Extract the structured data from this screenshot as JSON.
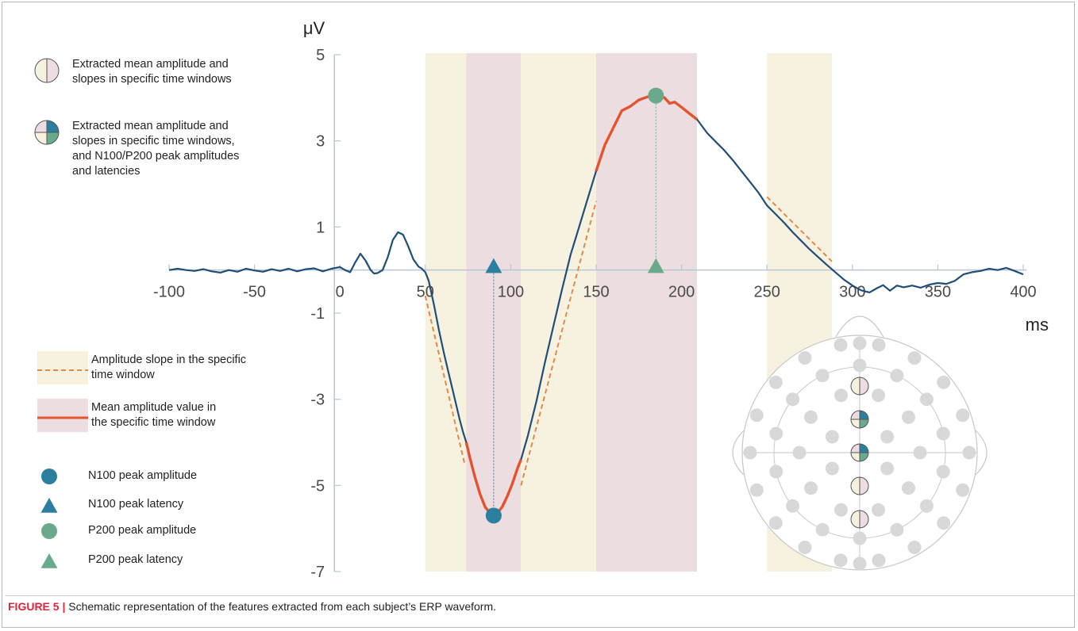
{
  "caption": {
    "label": "FIGURE 5 |",
    "text": " Schematic representation of the features extracted from each subject’s ERP waveform."
  },
  "legend_top": [
    {
      "icon": "two-quadrant-circle-icon",
      "lines": [
        "Extracted mean amplitude and",
        "slopes in specific time windows"
      ]
    },
    {
      "icon": "four-quadrant-circle-icon",
      "lines": [
        "Extracted mean amplitude and",
        "slopes in specific time windows,",
        "and N100/P200 peak amplitudes",
        "and latencies"
      ]
    }
  ],
  "legend_bottom": [
    {
      "icon": "dashed-orange-line-icon",
      "lines": [
        "Amplitude slope in the specific",
        "time window"
      ]
    },
    {
      "icon": "solid-red-line-icon",
      "lines": [
        "Mean amplitude value in",
        "the specific time window"
      ]
    },
    {
      "icon": "blue-circle-icon",
      "lines": [
        "N100 peak amplitude"
      ]
    },
    {
      "icon": "blue-triangle-icon",
      "lines": [
        "N100 peak latency"
      ]
    },
    {
      "icon": "green-circle-icon",
      "lines": [
        "P200 peak amplitude"
      ]
    },
    {
      "icon": "green-triangle-icon",
      "lines": [
        "P200 peak latency"
      ]
    }
  ],
  "colors": {
    "waveform": "#1f4e79",
    "mean_segment": "#e4532f",
    "slope": "#e08a4a",
    "window_yellow": "#f7f2df",
    "window_pink": "#ecdde0",
    "n100": "#2c7f9f",
    "p200": "#6aaa8c",
    "axis": "#b8c7d6",
    "electrode": "#d8d8d8"
  },
  "chart_data": {
    "type": "line",
    "title": "",
    "xlabel": "ms",
    "ylabel": "μV",
    "xlim": [
      -100,
      400
    ],
    "ylim": [
      -7,
      5
    ],
    "x_ticks": [
      -100,
      -50,
      0,
      50,
      100,
      150,
      200,
      250,
      300,
      350,
      400
    ],
    "y_ticks": [
      5,
      3,
      1,
      -1,
      -3,
      -5,
      -7
    ],
    "time_windows": [
      {
        "start": 50,
        "end": 74,
        "kind": "slope"
      },
      {
        "start": 74,
        "end": 106,
        "kind": "mean"
      },
      {
        "start": 106,
        "end": 150,
        "kind": "slope"
      },
      {
        "start": 150,
        "end": 209,
        "kind": "mean"
      },
      {
        "start": 250,
        "end": 288,
        "kind": "slope"
      }
    ],
    "series": [
      {
        "points": [
          [
            -100,
            0.0
          ],
          [
            -95,
            0.03
          ],
          [
            -90,
            0.0
          ],
          [
            -85,
            -0.02
          ],
          [
            -80,
            0.02
          ],
          [
            -75,
            -0.03
          ],
          [
            -70,
            -0.06
          ],
          [
            -65,
            0.0
          ],
          [
            -60,
            -0.04
          ],
          [
            -55,
            0.03
          ],
          [
            -50,
            -0.01
          ],
          [
            -45,
            -0.04
          ],
          [
            -40,
            0.02
          ],
          [
            -35,
            -0.02
          ],
          [
            -30,
            0.03
          ],
          [
            -25,
            -0.03
          ],
          [
            -20,
            0.02
          ],
          [
            -15,
            0.04
          ],
          [
            -10,
            -0.03
          ],
          [
            -5,
            0.03
          ],
          [
            0,
            0.07
          ],
          [
            3,
            0.0
          ],
          [
            6,
            -0.05
          ],
          [
            9,
            0.18
          ],
          [
            12,
            0.38
          ],
          [
            15,
            0.22
          ],
          [
            18,
            0.0
          ],
          [
            20,
            -0.08
          ],
          [
            22,
            -0.07
          ],
          [
            25,
            0.0
          ],
          [
            28,
            0.3
          ],
          [
            31,
            0.7
          ],
          [
            34,
            0.88
          ],
          [
            37,
            0.82
          ],
          [
            40,
            0.55
          ],
          [
            43,
            0.25
          ],
          [
            46,
            0.08
          ],
          [
            48,
            0.03
          ],
          [
            50,
            -0.05
          ],
          [
            52,
            -0.25
          ],
          [
            55,
            -0.8
          ],
          [
            58,
            -1.4
          ],
          [
            61,
            -1.95
          ],
          [
            64,
            -2.45
          ],
          [
            67,
            -2.95
          ],
          [
            70,
            -3.45
          ],
          [
            72,
            -3.75
          ],
          [
            74,
            -4.0
          ],
          [
            76,
            -4.35
          ],
          [
            79,
            -4.8
          ],
          [
            82,
            -5.2
          ],
          [
            85,
            -5.5
          ],
          [
            88,
            -5.65
          ],
          [
            90,
            -5.7
          ],
          [
            92,
            -5.65
          ],
          [
            95,
            -5.5
          ],
          [
            98,
            -5.25
          ],
          [
            101,
            -4.95
          ],
          [
            104,
            -4.6
          ],
          [
            106,
            -4.4
          ],
          [
            110,
            -3.85
          ],
          [
            115,
            -3.05
          ],
          [
            120,
            -2.15
          ],
          [
            125,
            -1.3
          ],
          [
            130,
            -0.45
          ],
          [
            135,
            0.35
          ],
          [
            140,
            1.0
          ],
          [
            145,
            1.65
          ],
          [
            150,
            2.3
          ],
          [
            155,
            2.9
          ],
          [
            160,
            3.3
          ],
          [
            165,
            3.7
          ],
          [
            170,
            3.8
          ],
          [
            175,
            3.95
          ],
          [
            180,
            4.02
          ],
          [
            185,
            4.05
          ],
          [
            190,
            4.0
          ],
          [
            193,
            3.87
          ],
          [
            196,
            3.9
          ],
          [
            200,
            3.78
          ],
          [
            205,
            3.62
          ],
          [
            209,
            3.5
          ],
          [
            215,
            3.18
          ],
          [
            220,
            2.98
          ],
          [
            225,
            2.78
          ],
          [
            230,
            2.55
          ],
          [
            235,
            2.3
          ],
          [
            240,
            2.05
          ],
          [
            245,
            1.8
          ],
          [
            250,
            1.5
          ],
          [
            255,
            1.3
          ],
          [
            260,
            1.1
          ],
          [
            265,
            0.88
          ],
          [
            270,
            0.68
          ],
          [
            275,
            0.48
          ],
          [
            280,
            0.3
          ],
          [
            285,
            0.12
          ],
          [
            290,
            -0.05
          ],
          [
            295,
            -0.22
          ],
          [
            300,
            -0.36
          ],
          [
            305,
            -0.47
          ],
          [
            310,
            -0.52
          ],
          [
            314,
            -0.43
          ],
          [
            318,
            -0.35
          ],
          [
            322,
            -0.48
          ],
          [
            326,
            -0.36
          ],
          [
            330,
            -0.4
          ],
          [
            335,
            -0.36
          ],
          [
            340,
            -0.41
          ],
          [
            345,
            -0.34
          ],
          [
            350,
            -0.3
          ],
          [
            355,
            -0.32
          ],
          [
            360,
            -0.25
          ],
          [
            365,
            -0.1
          ],
          [
            370,
            -0.05
          ],
          [
            375,
            -0.02
          ],
          [
            380,
            0.03
          ],
          [
            385,
            0.0
          ],
          [
            390,
            0.05
          ],
          [
            395,
            -0.02
          ],
          [
            400,
            -0.1
          ]
        ]
      }
    ],
    "slope_lines": [
      {
        "x": [
          50,
          73
        ],
        "y": [
          -0.6,
          -4.5
        ]
      },
      {
        "x": [
          106,
          150
        ],
        "y": [
          -5.0,
          1.6
        ]
      },
      {
        "x": [
          250,
          288
        ],
        "y": [
          1.7,
          0.2
        ]
      }
    ],
    "n100_peak": {
      "x": 90,
      "y": -5.7
    },
    "p200_peak": {
      "x": 185,
      "y": 4.05
    }
  },
  "electrode_map": {
    "marked_electrodes": [
      "mean-and-slopes",
      "mean-slopes-and-peaks",
      "mean-slopes-and-peaks",
      "mean-and-slopes",
      "mean-and-slopes"
    ]
  }
}
